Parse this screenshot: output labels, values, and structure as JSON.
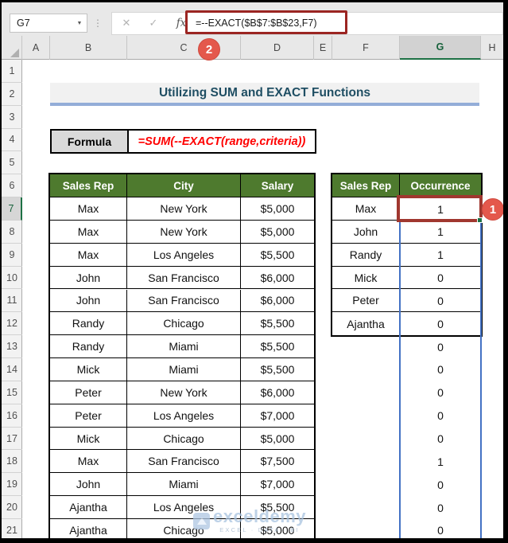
{
  "chrome": {
    "name_box": "G7",
    "formula": "=--EXACT($B$7:$B$23,F7)",
    "cancel_glyph": "✕",
    "enter_glyph": "✓",
    "fx_glyph": "fx",
    "dots_glyph": "⋮",
    "dropdown_glyph": "▼"
  },
  "grid": {
    "column_labels": [
      "A",
      "B",
      "C",
      "D",
      "E",
      "F",
      "G",
      "H"
    ],
    "selected_column": "G",
    "visible_rows": 21,
    "selected_row": 7
  },
  "badges": {
    "formula_step": "2",
    "result_step": "1"
  },
  "title": "Utilizing SUM and EXACT Functions",
  "formula_box": {
    "label": "Formula",
    "text": "=SUM(--EXACT(range,criteria))"
  },
  "left_table": {
    "headers": [
      "Sales Rep",
      "City",
      "Salary"
    ],
    "rows": [
      [
        "Max",
        "New York",
        "$5,000"
      ],
      [
        "Max",
        "New York",
        "$5,000"
      ],
      [
        "Max",
        "Los Angeles",
        "$5,500"
      ],
      [
        "John",
        "San Francisco",
        "$6,000"
      ],
      [
        "John",
        "San Francisco",
        "$6,000"
      ],
      [
        "Randy",
        "Chicago",
        "$5,500"
      ],
      [
        "Randy",
        "Miami",
        "$5,500"
      ],
      [
        "Mick",
        "Miami",
        "$5,500"
      ],
      [
        "Peter",
        "New York",
        "$6,000"
      ],
      [
        "Peter",
        "Los Angeles",
        "$7,000"
      ],
      [
        "Mick",
        "Chicago",
        "$5,000"
      ],
      [
        "Max",
        "San Francisco",
        "$7,500"
      ],
      [
        "John",
        "Miami",
        "$7,000"
      ],
      [
        "Ajantha",
        "Los Angeles",
        "$5,500"
      ],
      [
        "Ajantha",
        "Chicago",
        "$5,000"
      ]
    ]
  },
  "right_table": {
    "headers": [
      "Sales Rep",
      "Occurrence"
    ],
    "names": [
      "Max",
      "John",
      "Randy",
      "Mick",
      "Peter",
      "Ajantha"
    ],
    "occurrences": [
      "1",
      "1",
      "1",
      "0",
      "0",
      "0",
      "0",
      "0",
      "0",
      "0",
      "0",
      "1",
      "0",
      "0",
      "0"
    ]
  },
  "watermark": {
    "text": "exceldemy",
    "subtext": "EXCEL · DATA · BI"
  },
  "colors": {
    "header_green": "#4e7a2e",
    "excel_green": "#1e7145",
    "annotation_red": "#e4584c",
    "formula_box_red": "#9b2522",
    "selection_red": "#a0372f",
    "spill_blue": "#4472c4",
    "title_blue": "#1f4e63",
    "underline_blue": "#93add8",
    "formula_text_red": "#ff0000"
  }
}
